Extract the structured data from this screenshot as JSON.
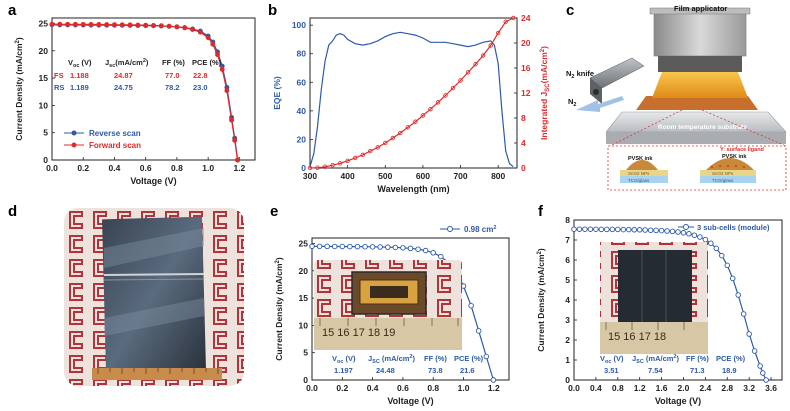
{
  "panels": {
    "a": {
      "letter": "a",
      "legend": [
        "Reverse scan",
        "Forward scan"
      ],
      "table_headers": [
        "V",
        "J",
        "FF (%)",
        "PCE (%)"
      ],
      "voc_header": {
        "main": "V",
        "sub": "oc",
        "tail": " (V)"
      },
      "jsc_header": {
        "main": "J",
        "sub": "sc",
        "tail": "(mA/cm",
        "sup": "2",
        "end": ")"
      },
      "rows": [
        {
          "label": "FS",
          "voc": "1.188",
          "jsc": "24.87",
          "ff": "77.0",
          "pce": "22.8"
        },
        {
          "label": "RS",
          "voc": "1.189",
          "jsc": "24.75",
          "ff": "78.2",
          "pce": "23.0"
        }
      ]
    },
    "b": {
      "letter": "b"
    },
    "c": {
      "letter": "c",
      "film_applicator": "Film applicator",
      "n2_knife": "N",
      "n2_knife_sub": "2",
      "n2_knife_tail": " knife",
      "n2": "N",
      "n2_sub": "2",
      "substrate": "Room temperature substrate",
      "pvsk_ink_left": "PVSK ink",
      "sno2_nps": "SnO2 NPs",
      "tco_left": "TCO/glass",
      "y_ligand": "Y: surface ligand",
      "pvsk_ink_right": "PVSK ink",
      "sno2_y": "SnO2 NPs",
      "tco_right": "TCO/glass"
    },
    "d": {
      "letter": "d"
    },
    "e": {
      "letter": "e",
      "legend": "0.98 cm",
      "legend_sup": "2",
      "headers": {
        "voc": "V",
        "voc_sub": "oc",
        "voc_tail": " (V)",
        "jsc": "J",
        "jsc_sub": "SC",
        "jsc_tail": " (mA/cm",
        "jsc_sup": "2",
        "jsc_end": ")",
        "ff": "FF (%)",
        "pce": "PCE (%)"
      },
      "values": {
        "voc": "1.197",
        "jsc": "24.48",
        "ff": "73.8",
        "pce": "21.6"
      },
      "ruler": "15  16  17  18  19"
    },
    "f": {
      "letter": "f",
      "legend": "3 sub-cells (module)",
      "headers": {
        "voc": "V",
        "voc_sub": "oc",
        "voc_tail": " (V)",
        "jsc": "J",
        "jsc_sub": "SC",
        "jsc_tail": " (mA/cm",
        "jsc_sup": "2",
        "jsc_end": ")",
        "ff": "FF (%)",
        "pce": "PCE (%)"
      },
      "values": {
        "voc": "3.51",
        "jsc": "7.54",
        "ff": "71.3",
        "pce": "18.9"
      },
      "ruler": "15  16  17  18"
    }
  },
  "colors": {
    "blue": "#2d5aa8",
    "red": "#e02a2a",
    "dark": "#222222",
    "gray_table": "#333333"
  },
  "chart_data": [
    {
      "id": "a",
      "type": "line",
      "xlabel": "Voltage (V)",
      "ylabel": "Current Density (mA/cm",
      "ylabel_sup": "2",
      "ylabel_end": ")",
      "xlim": [
        0,
        1.3
      ],
      "ylim": [
        0,
        26
      ],
      "xticks": [
        "0.0",
        "0.2",
        "0.4",
        "0.6",
        "0.8",
        "1.0",
        "1.2"
      ],
      "xtick_values": [
        0,
        0.2,
        0.4,
        0.6,
        0.8,
        1.0,
        1.2
      ],
      "yticks": [
        "0",
        "5",
        "10",
        "15",
        "20",
        "25"
      ],
      "ytick_values": [
        0,
        5,
        10,
        15,
        20,
        25
      ],
      "series": [
        {
          "name": "Reverse scan",
          "color": "#2d5aa8",
          "x": [
            0,
            0.05,
            0.1,
            0.15,
            0.2,
            0.25,
            0.3,
            0.35,
            0.4,
            0.45,
            0.5,
            0.55,
            0.6,
            0.65,
            0.7,
            0.75,
            0.8,
            0.85,
            0.9,
            0.95,
            1.0,
            1.03,
            1.06,
            1.09,
            1.12,
            1.15,
            1.17,
            1.189
          ],
          "y": [
            24.75,
            24.74,
            24.73,
            24.72,
            24.71,
            24.7,
            24.69,
            24.68,
            24.67,
            24.66,
            24.64,
            24.62,
            24.6,
            24.57,
            24.53,
            24.47,
            24.38,
            24.25,
            24.0,
            23.6,
            22.7,
            21.6,
            19.8,
            17.2,
            13.3,
            7.8,
            4.0,
            0
          ]
        },
        {
          "name": "Forward scan",
          "color": "#e02a2a",
          "x": [
            0,
            0.05,
            0.1,
            0.15,
            0.2,
            0.25,
            0.3,
            0.35,
            0.4,
            0.45,
            0.5,
            0.55,
            0.6,
            0.65,
            0.7,
            0.75,
            0.8,
            0.85,
            0.9,
            0.95,
            1.0,
            1.03,
            1.06,
            1.09,
            1.12,
            1.15,
            1.17,
            1.188
          ],
          "y": [
            24.87,
            24.86,
            24.85,
            24.84,
            24.83,
            24.82,
            24.81,
            24.8,
            24.78,
            24.76,
            24.74,
            24.71,
            24.68,
            24.64,
            24.58,
            24.5,
            24.38,
            24.2,
            23.9,
            23.4,
            22.4,
            21.2,
            19.3,
            16.6,
            12.7,
            7.3,
            3.6,
            0
          ]
        }
      ]
    },
    {
      "id": "b",
      "type": "line",
      "xlabel": "Wavelength (nm)",
      "ylabel": "EQE (%)",
      "ylabel2": "Integrated J",
      "ylabel2_sub": "SC",
      "ylabel2_tail": "(mA/cm",
      "ylabel2_sup": "2",
      "ylabel2_end": ")",
      "xlim": [
        300,
        850
      ],
      "ylim": [
        0,
        105
      ],
      "y2lim": [
        0,
        24
      ],
      "xticks": [
        "300",
        "400",
        "500",
        "600",
        "700",
        "800"
      ],
      "xtick_values": [
        300,
        400,
        500,
        600,
        700,
        800
      ],
      "yticks": [
        "0",
        "20",
        "40",
        "60",
        "80",
        "100"
      ],
      "ytick_values": [
        0,
        20,
        40,
        60,
        80,
        100
      ],
      "y2ticks": [
        "0",
        "4",
        "8",
        "12",
        "16",
        "20",
        "24"
      ],
      "y2tick_values": [
        0,
        4,
        8,
        12,
        16,
        20,
        24
      ],
      "series": [
        {
          "name": "EQE",
          "axis": "left",
          "color": "#2d5aa8",
          "x": [
            300,
            310,
            320,
            330,
            340,
            350,
            360,
            370,
            380,
            390,
            400,
            420,
            440,
            460,
            480,
            500,
            520,
            540,
            560,
            580,
            600,
            620,
            640,
            660,
            680,
            700,
            720,
            740,
            760,
            780,
            790,
            800,
            810,
            820,
            830,
            840
          ],
          "y": [
            1,
            10,
            29,
            55,
            75,
            86,
            89,
            93,
            94,
            93,
            90,
            87,
            86,
            87,
            89,
            92,
            94,
            95,
            94,
            93,
            91,
            88,
            88,
            88,
            87,
            86,
            85,
            86,
            88,
            89,
            86,
            73,
            40,
            12,
            3,
            1
          ]
        },
        {
          "name": "Integrated JSC",
          "axis": "right",
          "color": "#e02a2a",
          "x": [
            300,
            320,
            340,
            360,
            380,
            400,
            420,
            440,
            460,
            480,
            500,
            520,
            540,
            560,
            580,
            600,
            620,
            640,
            660,
            680,
            700,
            720,
            740,
            760,
            780,
            800,
            820,
            840
          ],
          "y": [
            0,
            0.05,
            0.2,
            0.45,
            0.75,
            1.15,
            1.6,
            2.1,
            2.7,
            3.3,
            4.0,
            4.8,
            5.6,
            6.5,
            7.4,
            8.4,
            9.4,
            10.5,
            11.6,
            12.8,
            14.0,
            15.3,
            16.6,
            18.0,
            19.6,
            21.6,
            23.4,
            24.0
          ]
        }
      ]
    },
    {
      "id": "e",
      "type": "line",
      "xlabel": "Voltage (V)",
      "ylabel": "Current Density (mA/cm",
      "ylabel_sup": "2",
      "ylabel_end": ")",
      "xlim": [
        0,
        1.3
      ],
      "ylim": [
        0,
        26
      ],
      "xticks": [
        "0.0",
        "0.2",
        "0.4",
        "0.6",
        "0.8",
        "1.0",
        "1.2"
      ],
      "xtick_values": [
        0,
        0.2,
        0.4,
        0.6,
        0.8,
        1.0,
        1.2
      ],
      "yticks": [
        "0",
        "5",
        "10",
        "15",
        "20",
        "25"
      ],
      "ytick_values": [
        0,
        5,
        10,
        15,
        20,
        25
      ],
      "series": [
        {
          "name": "0.98 cm2",
          "color": "#2d5aa8",
          "x": [
            0,
            0.05,
            0.1,
            0.15,
            0.2,
            0.25,
            0.3,
            0.35,
            0.4,
            0.45,
            0.5,
            0.55,
            0.6,
            0.65,
            0.7,
            0.75,
            0.8,
            0.85,
            0.9,
            0.95,
            1.0,
            1.05,
            1.1,
            1.15,
            1.197
          ],
          "y": [
            24.48,
            24.47,
            24.46,
            24.45,
            24.44,
            24.43,
            24.42,
            24.4,
            24.38,
            24.35,
            24.32,
            24.27,
            24.2,
            24.1,
            23.95,
            23.7,
            23.3,
            22.6,
            21.5,
            19.8,
            17.2,
            13.6,
            9.0,
            4.3,
            0
          ]
        }
      ]
    },
    {
      "id": "f",
      "type": "line",
      "xlabel": "Voltage (V)",
      "ylabel": "Current Density (mA/cm",
      "ylabel_sup": "2",
      "ylabel_end": ")",
      "xlim": [
        0,
        3.8
      ],
      "ylim": [
        0,
        8
      ],
      "xticks": [
        "0.0",
        "0.4",
        "0.8",
        "1.2",
        "1.6",
        "2.0",
        "2.4",
        "2.8",
        "3.2",
        "3.6"
      ],
      "xtick_values": [
        0,
        0.4,
        0.8,
        1.2,
        1.6,
        2.0,
        2.4,
        2.8,
        3.2,
        3.6
      ],
      "yticks": [
        "0",
        "1",
        "2",
        "3",
        "4",
        "5",
        "6",
        "7",
        "8"
      ],
      "ytick_values": [
        0,
        1,
        2,
        3,
        4,
        5,
        6,
        7,
        8
      ],
      "series": [
        {
          "name": "3 sub-cells (module)",
          "color": "#2d5aa8",
          "x": [
            0,
            0.1,
            0.2,
            0.3,
            0.4,
            0.5,
            0.6,
            0.7,
            0.8,
            0.9,
            1.0,
            1.1,
            1.2,
            1.3,
            1.4,
            1.5,
            1.6,
            1.7,
            1.8,
            1.9,
            2.0,
            2.1,
            2.2,
            2.3,
            2.4,
            2.5,
            2.6,
            2.7,
            2.8,
            2.9,
            3.0,
            3.1,
            3.2,
            3.3,
            3.4,
            3.45,
            3.51
          ],
          "y": [
            7.54,
            7.54,
            7.54,
            7.54,
            7.54,
            7.53,
            7.53,
            7.53,
            7.53,
            7.52,
            7.52,
            7.51,
            7.51,
            7.5,
            7.49,
            7.48,
            7.47,
            7.45,
            7.43,
            7.4,
            7.36,
            7.31,
            7.24,
            7.15,
            7.02,
            6.84,
            6.58,
            6.22,
            5.73,
            5.08,
            4.25,
            3.3,
            2.3,
            1.45,
            0.7,
            0.35,
            0
          ]
        }
      ]
    }
  ]
}
